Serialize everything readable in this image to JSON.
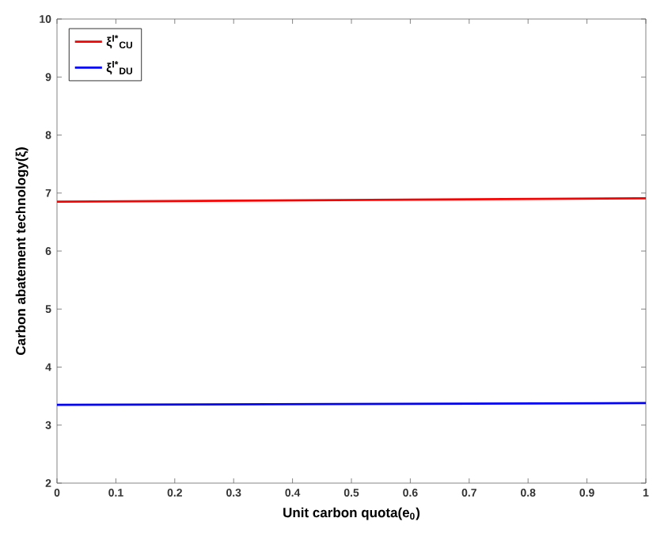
{
  "chart_data": {
    "type": "line",
    "xlabel": "Unit carbon quota(e$_{0}$)",
    "ylabel": "Carbon abatement technology(ξ)",
    "x": [
      0,
      1
    ],
    "series": [
      {
        "name": "ξ$^{I*}$$_{CU}$",
        "color": "#ff0000",
        "values": [
          6.85,
          6.91
        ]
      },
      {
        "name": "ξ$^{I*}$$_{DU}$",
        "color": "#0000ff",
        "values": [
          3.35,
          3.38
        ]
      }
    ],
    "xlim": [
      0,
      1
    ],
    "ylim": [
      2,
      10
    ],
    "xticks": [
      0,
      0.1,
      0.2,
      0.3,
      0.4,
      0.5,
      0.6,
      0.7,
      0.8,
      0.9,
      1
    ],
    "yticks": [
      2,
      3,
      4,
      5,
      6,
      7,
      8,
      9,
      10
    ],
    "grid": false,
    "legend": "top left",
    "marker": "none",
    "line_style": "solid"
  }
}
